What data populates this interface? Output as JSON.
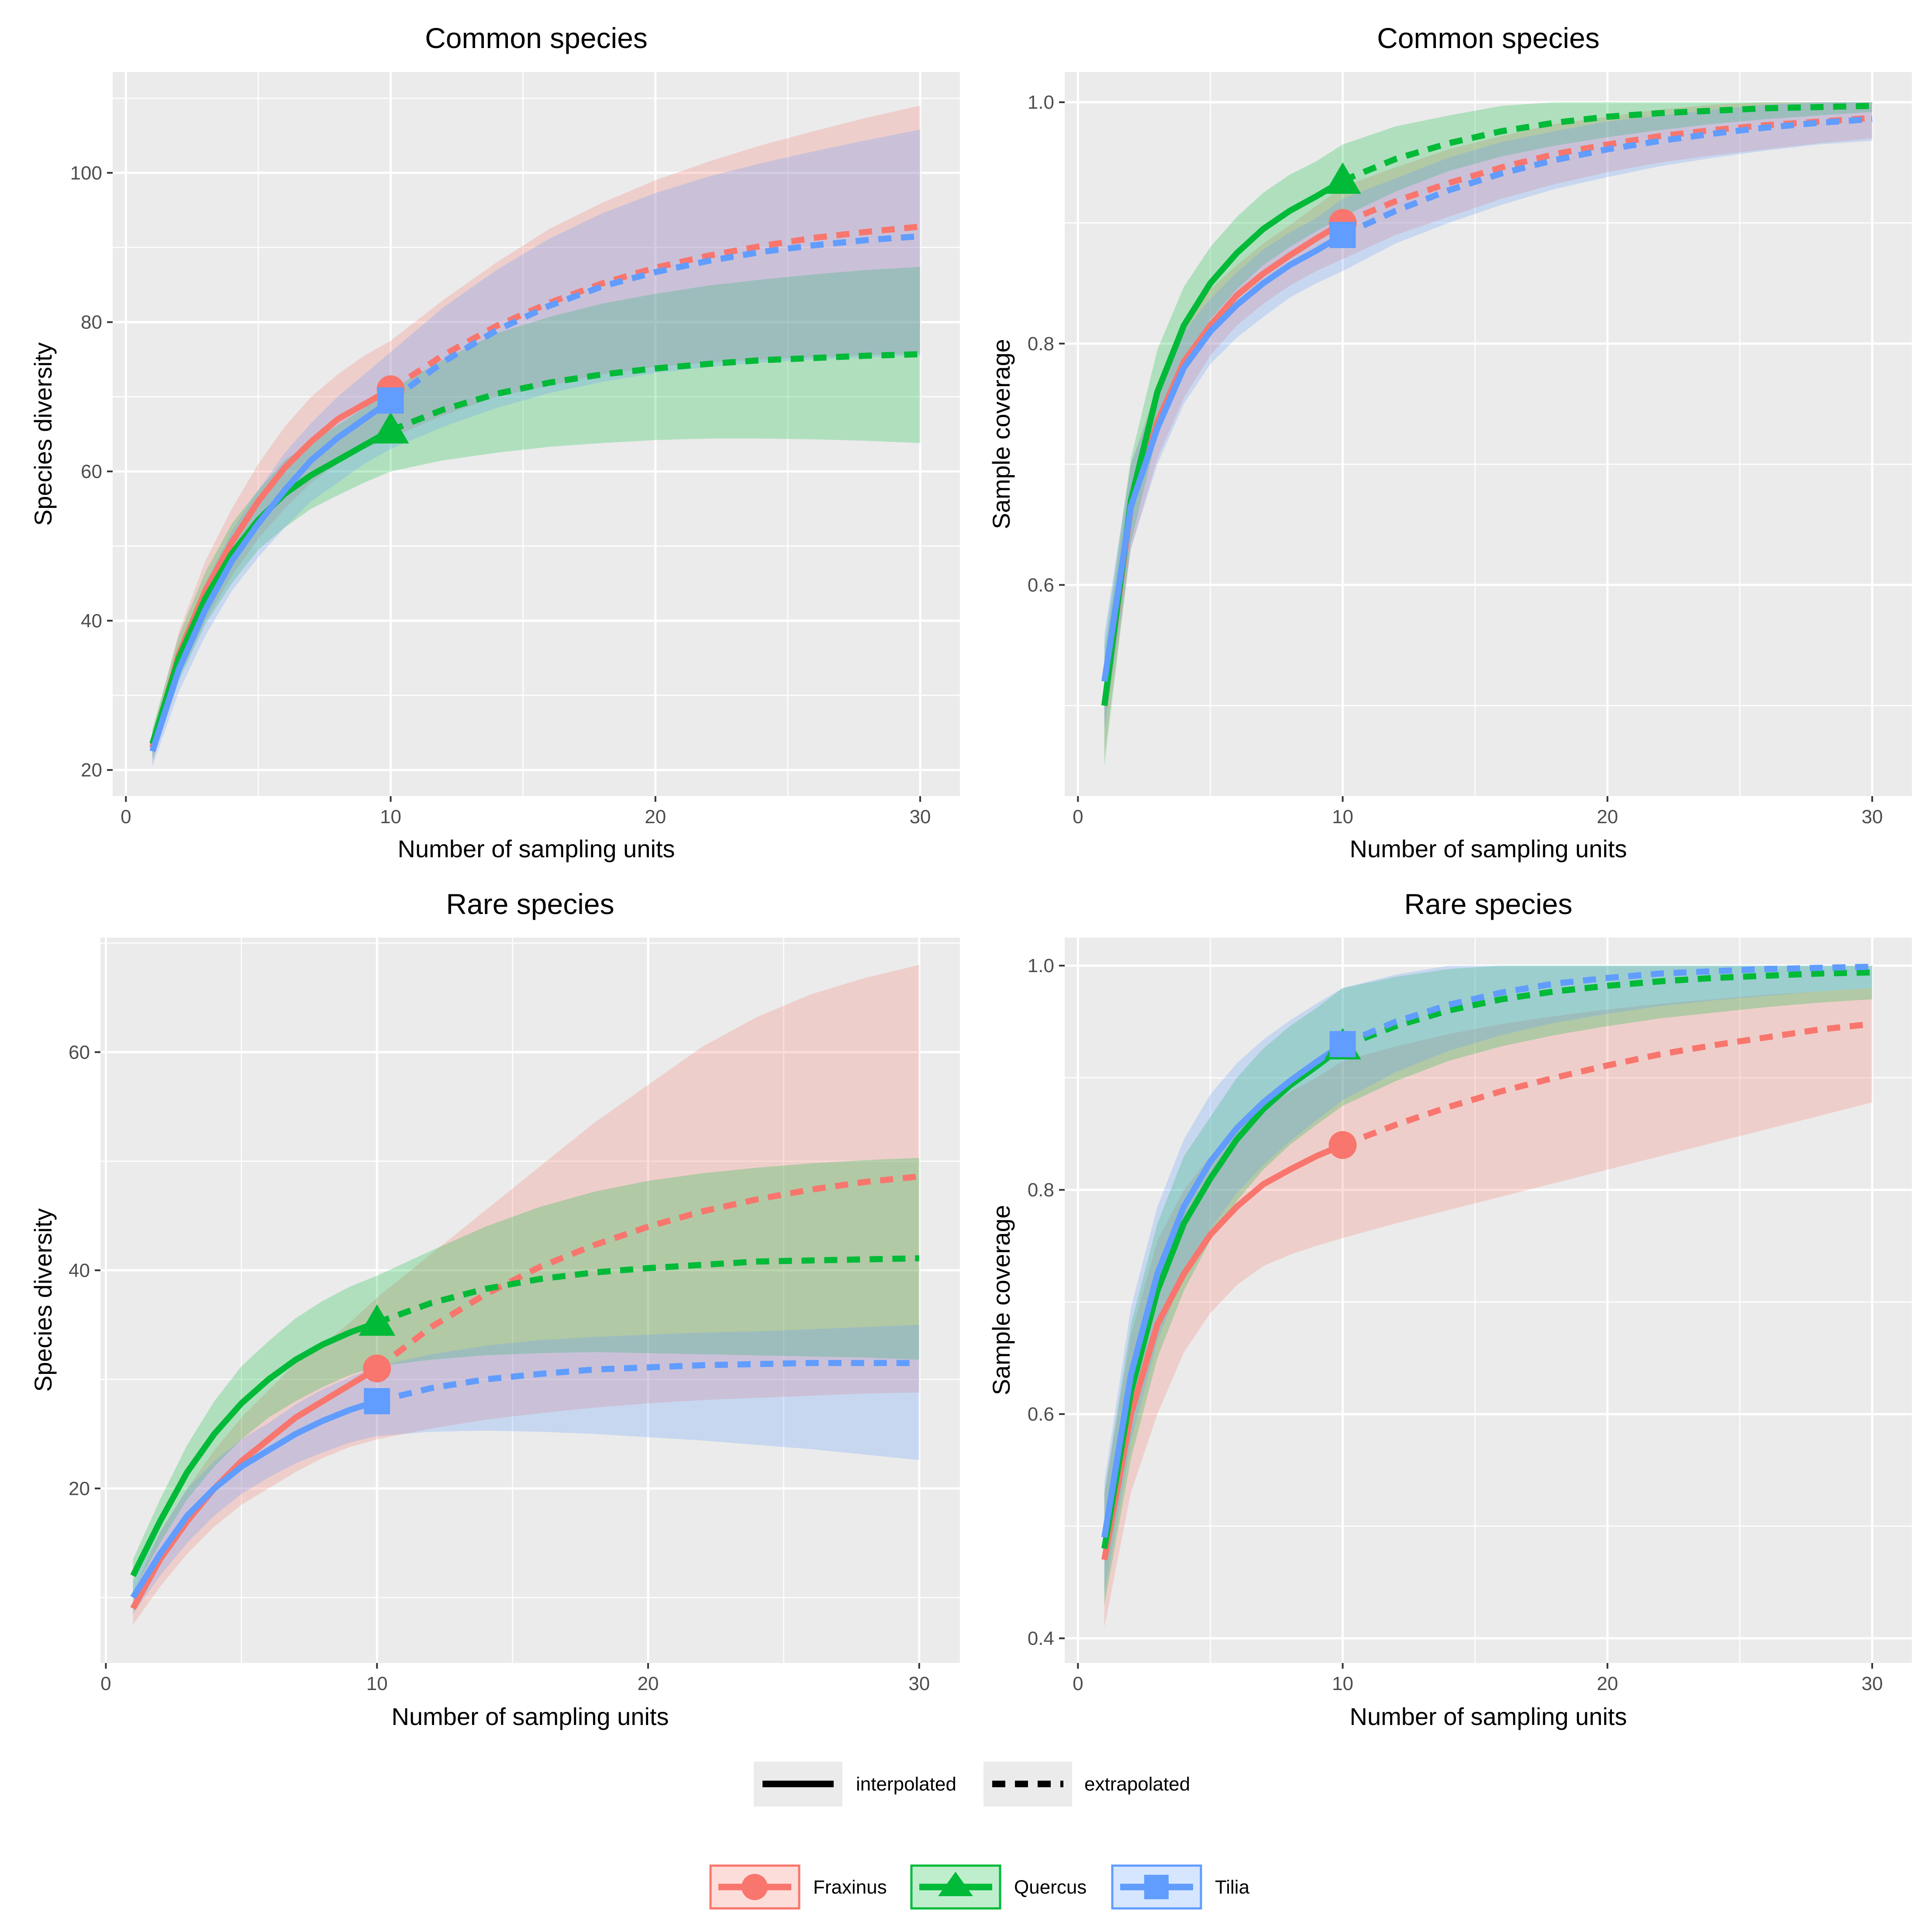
{
  "colors": {
    "Fraxinus": "#F8766D",
    "Quercus": "#00BA38",
    "Tilia": "#619CFF",
    "panel_bg": "#EBEBEB",
    "grid": "#FFFFFF"
  },
  "legend": {
    "linetype": [
      {
        "label": "interpolated",
        "style": "solid"
      },
      {
        "label": "extrapolated",
        "style": "dashed"
      }
    ],
    "species": [
      {
        "label": "Fraxinus",
        "marker": "circle"
      },
      {
        "label": "Quercus",
        "marker": "triangle"
      },
      {
        "label": "Tilia",
        "marker": "square"
      }
    ]
  },
  "chart_data": [
    {
      "type": "line",
      "title": "Common species",
      "xlabel": "Number of sampling units",
      "ylabel": "Species diversity",
      "xlim": [
        -0.5,
        31.5
      ],
      "ylim": [
        16.5,
        113.5
      ],
      "xticks": [
        0,
        10,
        20,
        30
      ],
      "xtick_labels": [
        "0",
        "10",
        "20",
        "30"
      ],
      "yticks": [
        20,
        40,
        60,
        80,
        100
      ],
      "ytick_labels": [
        "20",
        "40",
        "60",
        "80",
        "100"
      ],
      "grid": true,
      "x": [
        1,
        2,
        3,
        4,
        5,
        6,
        7,
        8,
        9,
        10,
        12,
        14,
        16,
        18,
        20,
        22,
        24,
        26,
        28,
        30
      ],
      "observed_x": 10,
      "series": [
        {
          "name": "Fraxinus",
          "marker": "circle",
          "values": [
            23,
            35.5,
            44,
            50.5,
            56,
            60.5,
            64,
            67,
            69,
            71,
            75.6,
            79.5,
            82.6,
            85.2,
            87.3,
            88.9,
            90.2,
            91.3,
            92.1,
            92.8
          ],
          "lower": [
            21,
            32.5,
            40,
            46,
            51,
            55,
            58.5,
            61,
            63,
            64.5,
            67.5,
            70,
            71.5,
            73,
            74,
            74.6,
            75,
            75.3,
            75.6,
            75.8
          ],
          "upper": [
            25,
            38.5,
            48,
            55,
            61,
            66,
            70,
            73,
            75.5,
            77.5,
            83,
            88,
            92.5,
            96,
            99,
            101.5,
            103.7,
            105.6,
            107.4,
            109
          ]
        },
        {
          "name": "Quercus",
          "marker": "triangle",
          "values": [
            23.5,
            35,
            43,
            49,
            53.5,
            57,
            59.5,
            61.5,
            63.5,
            65.5,
            68.3,
            70.4,
            71.9,
            73,
            73.8,
            74.4,
            74.9,
            75.2,
            75.5,
            75.7
          ],
          "lower": [
            21.5,
            32,
            39.5,
            45,
            49.5,
            52.5,
            55,
            56.8,
            58.5,
            60,
            61.5,
            62.5,
            63.3,
            63.8,
            64.2,
            64.4,
            64.4,
            64.3,
            64.1,
            63.8
          ],
          "upper": [
            25.5,
            38,
            46.5,
            53,
            57.5,
            61.5,
            64,
            66.2,
            68.5,
            71,
            75,
            78.5,
            80.7,
            82.5,
            83.8,
            84.9,
            85.7,
            86.4,
            87,
            87.4
          ]
        },
        {
          "name": "Tilia",
          "marker": "square",
          "values": [
            22.5,
            33.5,
            41.5,
            48,
            53,
            57.5,
            61.5,
            64.5,
            67,
            69.5,
            74.7,
            78.9,
            82.2,
            84.8,
            86.7,
            88.2,
            89.4,
            90.3,
            91,
            91.5
          ],
          "lower": [
            20.5,
            30.5,
            38,
            44,
            48.5,
            52.5,
            56,
            58.5,
            61,
            63,
            66,
            68.5,
            70.5,
            72,
            73.2,
            74,
            74.6,
            75,
            75.3,
            75.5
          ],
          "upper": [
            24.5,
            36.5,
            45,
            52,
            57.5,
            62.5,
            66.5,
            70,
            73,
            76,
            82,
            87,
            91.2,
            94.6,
            97.3,
            99.5,
            101.3,
            102.9,
            104.4,
            105.8
          ]
        }
      ]
    },
    {
      "type": "line",
      "title": "Common species",
      "xlabel": "Number of sampling units",
      "ylabel": "Sample coverage",
      "xlim": [
        -0.5,
        31.5
      ],
      "ylim": [
        0.425,
        1.025
      ],
      "xticks": [
        0,
        10,
        20,
        30
      ],
      "xtick_labels": [
        "0",
        "10",
        "20",
        "30"
      ],
      "yticks": [
        0.6,
        0.8,
        1.0
      ],
      "ytick_labels": [
        "0.6",
        "0.8",
        "1.0"
      ],
      "grid": true,
      "x": [
        1,
        2,
        3,
        4,
        5,
        6,
        7,
        8,
        9,
        10,
        12,
        14,
        16,
        18,
        20,
        22,
        24,
        26,
        28,
        30
      ],
      "observed_x": 10,
      "series": [
        {
          "name": "Fraxinus",
          "marker": "circle",
          "values": [
            0.5,
            0.665,
            0.735,
            0.785,
            0.815,
            0.84,
            0.858,
            0.873,
            0.887,
            0.9,
            0.918,
            0.933,
            0.946,
            0.957,
            0.965,
            0.972,
            0.977,
            0.981,
            0.984,
            0.987
          ],
          "lower": [
            0.46,
            0.63,
            0.705,
            0.755,
            0.79,
            0.815,
            0.833,
            0.848,
            0.86,
            0.87,
            0.89,
            0.905,
            0.92,
            0.932,
            0.942,
            0.95,
            0.956,
            0.961,
            0.966,
            0.97
          ],
          "upper": [
            0.54,
            0.7,
            0.765,
            0.815,
            0.845,
            0.865,
            0.883,
            0.898,
            0.914,
            0.93,
            0.946,
            0.961,
            0.972,
            0.982,
            0.988,
            0.994,
            0.998,
            1.0,
            1.0,
            1.0
          ]
        },
        {
          "name": "Quercus",
          "marker": "triangle",
          "values": [
            0.5,
            0.67,
            0.76,
            0.815,
            0.85,
            0.875,
            0.895,
            0.91,
            0.922,
            0.935,
            0.953,
            0.966,
            0.976,
            0.983,
            0.988,
            0.991,
            0.993,
            0.995,
            0.996,
            0.997
          ],
          "lower": [
            0.45,
            0.635,
            0.725,
            0.783,
            0.82,
            0.845,
            0.865,
            0.88,
            0.893,
            0.905,
            0.926,
            0.943,
            0.955,
            0.964,
            0.971,
            0.977,
            0.982,
            0.986,
            0.989,
            0.992
          ],
          "upper": [
            0.55,
            0.705,
            0.795,
            0.847,
            0.88,
            0.905,
            0.925,
            0.94,
            0.951,
            0.965,
            0.98,
            0.989,
            0.997,
            1.0,
            1.0,
            1.0,
            1.0,
            1.0,
            1.0,
            1.0
          ]
        },
        {
          "name": "Tilia",
          "marker": "square",
          "values": [
            0.52,
            0.665,
            0.73,
            0.78,
            0.81,
            0.832,
            0.85,
            0.865,
            0.877,
            0.89,
            0.91,
            0.927,
            0.941,
            0.952,
            0.961,
            0.968,
            0.974,
            0.979,
            0.983,
            0.986
          ],
          "lower": [
            0.48,
            0.63,
            0.7,
            0.75,
            0.783,
            0.805,
            0.822,
            0.838,
            0.85,
            0.86,
            0.883,
            0.9,
            0.915,
            0.928,
            0.938,
            0.947,
            0.954,
            0.96,
            0.965,
            0.968
          ],
          "upper": [
            0.56,
            0.7,
            0.76,
            0.81,
            0.837,
            0.859,
            0.878,
            0.892,
            0.904,
            0.92,
            0.937,
            0.954,
            0.967,
            0.976,
            0.984,
            0.989,
            0.994,
            0.998,
            1.0,
            1.0
          ]
        }
      ]
    },
    {
      "type": "line",
      "title": "Rare species",
      "xlabel": "Number of sampling units",
      "ylabel": "Species diversity",
      "xlim": [
        -0.2,
        31.5
      ],
      "ylim": [
        4,
        70.5
      ],
      "xticks": [
        0,
        10,
        20,
        30
      ],
      "xtick_labels": [
        "0",
        "10",
        "20",
        "30"
      ],
      "yticks": [
        20,
        40,
        60
      ],
      "ytick_labels": [
        "20",
        "40",
        "60"
      ],
      "grid": true,
      "x": [
        1,
        2,
        3,
        4,
        5,
        6,
        7,
        8,
        9,
        10,
        12,
        14,
        16,
        18,
        20,
        22,
        24,
        26,
        28,
        30
      ],
      "observed_x": 10,
      "series": [
        {
          "name": "Fraxinus",
          "marker": "circle",
          "values": [
            9,
            13.5,
            17,
            20,
            22.5,
            24.5,
            26.5,
            28,
            29.5,
            31,
            34.8,
            37.8,
            40.3,
            42.3,
            44,
            45.4,
            46.5,
            47.4,
            48.1,
            48.6
          ],
          "lower": [
            7.5,
            11,
            14,
            16.5,
            18.5,
            20,
            21.5,
            22.8,
            23.8,
            24.5,
            25.5,
            26.3,
            26.9,
            27.4,
            27.8,
            28.1,
            28.3,
            28.5,
            28.7,
            28.8
          ],
          "upper": [
            10.5,
            16,
            20,
            23.5,
            26.5,
            29,
            31.5,
            33.2,
            35.2,
            37.5,
            41.5,
            45.5,
            49.5,
            53.5,
            57,
            60.5,
            63.2,
            65.3,
            66.8,
            68
          ]
        },
        {
          "name": "Quercus",
          "marker": "triangle",
          "values": [
            12,
            17,
            21.5,
            25,
            27.8,
            30,
            31.8,
            33.2,
            34.3,
            35.2,
            37,
            38.3,
            39.2,
            39.8,
            40.2,
            40.5,
            40.8,
            40.9,
            41,
            41.1
          ],
          "lower": [
            10.5,
            15,
            19,
            22,
            24.5,
            26.5,
            28,
            29.3,
            30.4,
            31.2,
            31.8,
            32.2,
            32.4,
            32.5,
            32.4,
            32.3,
            32.2,
            32.1,
            32,
            31.8
          ],
          "upper": [
            13.5,
            19,
            24,
            28,
            31.2,
            33.5,
            35.6,
            37.2,
            38.5,
            39.5,
            41.8,
            44,
            45.8,
            47.2,
            48.2,
            48.9,
            49.4,
            49.8,
            50.1,
            50.3
          ]
        },
        {
          "name": "Tilia",
          "marker": "square",
          "values": [
            10,
            14,
            17.5,
            20,
            22,
            23.5,
            25,
            26.2,
            27.2,
            28,
            29.2,
            30,
            30.5,
            30.9,
            31.1,
            31.3,
            31.4,
            31.5,
            31.5,
            31.5
          ],
          "lower": [
            8.5,
            12,
            15,
            17.5,
            19.5,
            21,
            22.3,
            23.3,
            24.2,
            24.8,
            25.2,
            25.3,
            25.2,
            25,
            24.7,
            24.4,
            24,
            23.6,
            23.1,
            22.6
          ],
          "upper": [
            11.5,
            16,
            20,
            22.5,
            24.5,
            26,
            27.7,
            29.1,
            30.2,
            31.2,
            32.3,
            33.1,
            33.6,
            33.9,
            34.1,
            34.3,
            34.4,
            34.6,
            34.8,
            35
          ]
        }
      ]
    },
    {
      "type": "line",
      "title": "Rare species",
      "xlabel": "Number of sampling units",
      "ylabel": "Sample coverage",
      "xlim": [
        -0.5,
        31.5
      ],
      "ylim": [
        0.378,
        1.025
      ],
      "xticks": [
        0,
        10,
        20,
        30
      ],
      "xtick_labels": [
        "0",
        "10",
        "20",
        "30"
      ],
      "yticks": [
        0.4,
        0.6,
        0.8,
        1.0
      ],
      "ytick_labels": [
        "0.4",
        "0.6",
        "0.8",
        "1.0"
      ],
      "grid": true,
      "x": [
        1,
        2,
        3,
        4,
        5,
        6,
        7,
        8,
        9,
        10,
        12,
        14,
        16,
        18,
        20,
        22,
        24,
        26,
        28,
        30
      ],
      "observed_x": 10,
      "series": [
        {
          "name": "Fraxinus",
          "marker": "circle",
          "values": [
            0.47,
            0.6,
            0.68,
            0.725,
            0.76,
            0.785,
            0.805,
            0.818,
            0.83,
            0.84,
            0.858,
            0.874,
            0.888,
            0.9,
            0.911,
            0.921,
            0.929,
            0.936,
            0.943,
            0.948
          ],
          "lower": [
            0.41,
            0.53,
            0.6,
            0.655,
            0.69,
            0.715,
            0.732,
            0.742,
            0.75,
            0.757,
            0.77,
            0.782,
            0.794,
            0.806,
            0.818,
            0.83,
            0.842,
            0.854,
            0.866,
            0.878
          ],
          "upper": [
            0.53,
            0.67,
            0.755,
            0.8,
            0.83,
            0.855,
            0.872,
            0.887,
            0.9,
            0.915,
            0.928,
            0.939,
            0.948,
            0.955,
            0.961,
            0.966,
            0.97,
            0.974,
            0.977,
            0.98
          ]
        },
        {
          "name": "Quercus",
          "marker": "triangle",
          "values": [
            0.48,
            0.62,
            0.71,
            0.77,
            0.81,
            0.845,
            0.872,
            0.893,
            0.91,
            0.928,
            0.946,
            0.96,
            0.97,
            0.977,
            0.982,
            0.986,
            0.989,
            0.991,
            0.993,
            0.994
          ],
          "lower": [
            0.43,
            0.56,
            0.65,
            0.71,
            0.755,
            0.79,
            0.818,
            0.84,
            0.858,
            0.875,
            0.897,
            0.915,
            0.928,
            0.938,
            0.946,
            0.953,
            0.958,
            0.963,
            0.967,
            0.97
          ],
          "upper": [
            0.53,
            0.68,
            0.77,
            0.83,
            0.865,
            0.9,
            0.926,
            0.946,
            0.962,
            0.98,
            0.99,
            0.997,
            1.0,
            1.0,
            1.0,
            1.0,
            1.0,
            1.0,
            1.0,
            1.0
          ]
        },
        {
          "name": "Tilia",
          "marker": "square",
          "values": [
            0.49,
            0.635,
            0.725,
            0.785,
            0.825,
            0.855,
            0.878,
            0.897,
            0.914,
            0.93,
            0.95,
            0.965,
            0.976,
            0.984,
            0.989,
            0.993,
            0.995,
            0.997,
            0.998,
            0.999
          ],
          "lower": [
            0.44,
            0.575,
            0.665,
            0.725,
            0.765,
            0.797,
            0.822,
            0.843,
            0.862,
            0.88,
            0.905,
            0.924,
            0.938,
            0.949,
            0.957,
            0.964,
            0.969,
            0.973,
            0.977,
            0.98
          ],
          "upper": [
            0.54,
            0.695,
            0.785,
            0.845,
            0.885,
            0.913,
            0.934,
            0.951,
            0.966,
            0.98,
            0.992,
            1.0,
            1.0,
            1.0,
            1.0,
            1.0,
            1.0,
            1.0,
            1.0,
            1.0
          ]
        }
      ]
    }
  ]
}
